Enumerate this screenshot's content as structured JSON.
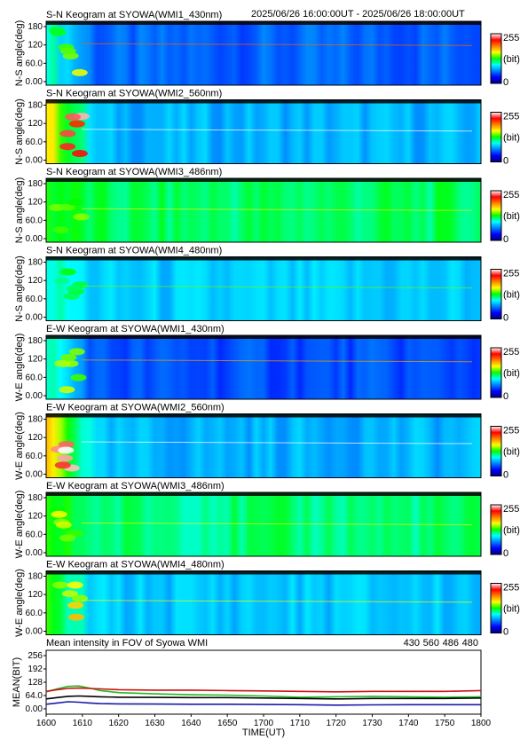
{
  "header": {
    "time_range": "2025/06/26 16:00:00UT - 2025/06/26 18:00:00UT"
  },
  "keograms": [
    {
      "title": "S-N Keogram at SYOWA(WMI1_430nm)",
      "ylabel": "N-S angle(deg)",
      "yticks": [
        "180",
        "120",
        "60.0",
        "0.00"
      ],
      "colorbar": {
        "max": "255",
        "unit": "(bit)",
        "min": "0"
      },
      "base_level": 0.22,
      "arc_level": 0.55,
      "spike_level": 0.78
    },
    {
      "title": "S-N Keogram at SYOWA(WMI2_560nm)",
      "ylabel": "N-S angle(deg)",
      "yticks": [
        "180",
        "120",
        "60.0",
        "0.00"
      ],
      "colorbar": {
        "max": "255",
        "unit": "(bit)",
        "min": "0"
      },
      "base_level": 0.3,
      "arc_level": 0.9,
      "spike_level": 1.0
    },
    {
      "title": "S-N Keogram at SYOWA(WMI3_486nm)",
      "ylabel": "N-S angle(deg)",
      "yticks": [
        "180",
        "120",
        "60.0",
        "0.00"
      ],
      "colorbar": {
        "max": "255",
        "unit": "(bit)",
        "min": "0"
      },
      "base_level": 0.45,
      "arc_level": 0.55,
      "spike_level": 0.62
    },
    {
      "title": "S-N Keogram at SYOWA(WMI4_480nm)",
      "ylabel": "N-S angle(deg)",
      "yticks": [
        "180",
        "120",
        "60.0",
        "0.00"
      ],
      "colorbar": {
        "max": "255",
        "unit": "(bit)",
        "min": "0"
      },
      "base_level": 0.32,
      "arc_level": 0.48,
      "spike_level": 0.55
    },
    {
      "title": "E-W Keogram at SYOWA(WMI1_430nm)",
      "ylabel": "W-E angle(deg)",
      "yticks": [
        "180",
        "120",
        "60.0",
        "0.00"
      ],
      "colorbar": {
        "max": "255",
        "unit": "(bit)",
        "min": "0"
      },
      "base_level": 0.2,
      "arc_level": 0.58,
      "spike_level": 0.72
    },
    {
      "title": "E-W Keogram at SYOWA(WMI2_560nm)",
      "ylabel": "W-E angle(deg)",
      "yticks": [
        "180",
        "120",
        "60.0",
        "0.00"
      ],
      "colorbar": {
        "max": "255",
        "unit": "(bit)",
        "min": "0"
      },
      "base_level": 0.3,
      "arc_level": 0.95,
      "spike_level": 1.0
    },
    {
      "title": "E-W Keogram at SYOWA(WMI3_486nm)",
      "ylabel": "W-E angle(deg)",
      "yticks": [
        "180",
        "120",
        "60.0",
        "0.00"
      ],
      "colorbar": {
        "max": "255",
        "unit": "(bit)",
        "min": "0"
      },
      "base_level": 0.44,
      "arc_level": 0.55,
      "spike_level": 0.62
    },
    {
      "title": "E-W Keogram at SYOWA(WMI4_480nm)",
      "ylabel": "W-E angle(deg)",
      "yticks": [
        "180",
        "120",
        "60.0",
        "0.00"
      ],
      "colorbar": {
        "max": "255",
        "unit": "(bit)",
        "min": "0"
      },
      "base_level": 0.32,
      "arc_level": 0.62,
      "spike_level": 0.62
    }
  ],
  "mean_panel": {
    "title": "Mean intensity in FOV of Syowa WMI",
    "ylabel": "MEAN(BIT)",
    "yticks": [
      "256",
      "192",
      "128",
      "64.0",
      "0.00"
    ],
    "xlabel": "TIME(UT)",
    "xticks": [
      "1600",
      "1610",
      "1620",
      "1630",
      "1640",
      "1650",
      "1700",
      "1710",
      "1720",
      "1730",
      "1740",
      "1750",
      "1800"
    ],
    "legend": [
      {
        "label": "430",
        "color": "#1a1aa8"
      },
      {
        "label": "560",
        "color": "#22bb22"
      },
      {
        "label": "486",
        "color": "#cc1111"
      },
      {
        "label": "480",
        "color": "#000000"
      }
    ]
  },
  "colormap": [
    "#000080",
    "#0000ff",
    "#0080ff",
    "#00ffff",
    "#00ff00",
    "#ffff00",
    "#ff8000",
    "#ff0000",
    "#ffffff"
  ],
  "chart_data": {
    "type": "line",
    "title": "Mean intensity in FOV of Syowa WMI",
    "xlabel": "TIME(UT)",
    "ylabel": "MEAN(BIT)",
    "ylim": [
      0,
      256
    ],
    "x_minutes": [
      0,
      3,
      6,
      9,
      12,
      15,
      20,
      30,
      40,
      50,
      60,
      70,
      80,
      90,
      100,
      110,
      120
    ],
    "series": [
      {
        "name": "430",
        "color": "#1a1aa8",
        "values": [
          22,
          28,
          34,
          32,
          28,
          25,
          24,
          23,
          22,
          22,
          21,
          20,
          18,
          19,
          20,
          20,
          20
        ]
      },
      {
        "name": "560",
        "color": "#22bb22",
        "values": [
          82,
          96,
          108,
          110,
          100,
          88,
          78,
          72,
          68,
          66,
          62,
          56,
          58,
          60,
          58,
          56,
          58
        ]
      },
      {
        "name": "486",
        "color": "#cc1111",
        "values": [
          84,
          92,
          98,
          100,
          98,
          96,
          92,
          90,
          90,
          88,
          86,
          84,
          82,
          84,
          84,
          84,
          88
        ]
      },
      {
        "name": "480",
        "color": "#000000",
        "values": [
          48,
          54,
          60,
          62,
          60,
          58,
          56,
          55,
          54,
          54,
          52,
          50,
          48,
          50,
          50,
          50,
          52
        ]
      }
    ]
  }
}
